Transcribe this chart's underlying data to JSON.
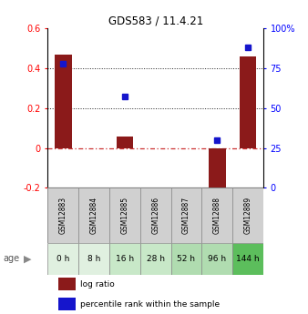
{
  "title": "GDS583 / 11.4.21",
  "samples": [
    "GSM12883",
    "GSM12884",
    "GSM12885",
    "GSM12886",
    "GSM12887",
    "GSM12888",
    "GSM12889"
  ],
  "ages": [
    "0 h",
    "8 h",
    "16 h",
    "28 h",
    "52 h",
    "96 h",
    "144 h"
  ],
  "log_ratio": [
    0.47,
    0.0,
    0.055,
    0.0,
    0.0,
    -0.23,
    0.46
  ],
  "percentile_rank": [
    78,
    0,
    57,
    0,
    0,
    30,
    88
  ],
  "bar_color": "#8B1A1A",
  "dot_color": "#1515CC",
  "ylim_left": [
    -0.2,
    0.6
  ],
  "ylim_right": [
    0,
    100
  ],
  "yticks_left": [
    -0.2,
    0,
    0.2,
    0.4,
    0.6
  ],
  "yticks_right": [
    0,
    25,
    50,
    75,
    100
  ],
  "ytick_labels_left": [
    "-0.2",
    "0",
    "0.2",
    "0.4",
    "0.6"
  ],
  "ytick_labels_right": [
    "0",
    "25",
    "50",
    "75",
    "100%"
  ],
  "hlines": [
    0.4,
    0.2
  ],
  "zero_line_color": "#cc3333",
  "hline_color": "#222222",
  "age_colors": [
    "#e0f0e0",
    "#e0f0e0",
    "#c8e8c8",
    "#c8e8c8",
    "#b0dcb0",
    "#b0dcb0",
    "#5cbe5c"
  ],
  "gsm_cell_color": "#d0d0d0",
  "background_color": "#ffffff",
  "age_label": "age"
}
